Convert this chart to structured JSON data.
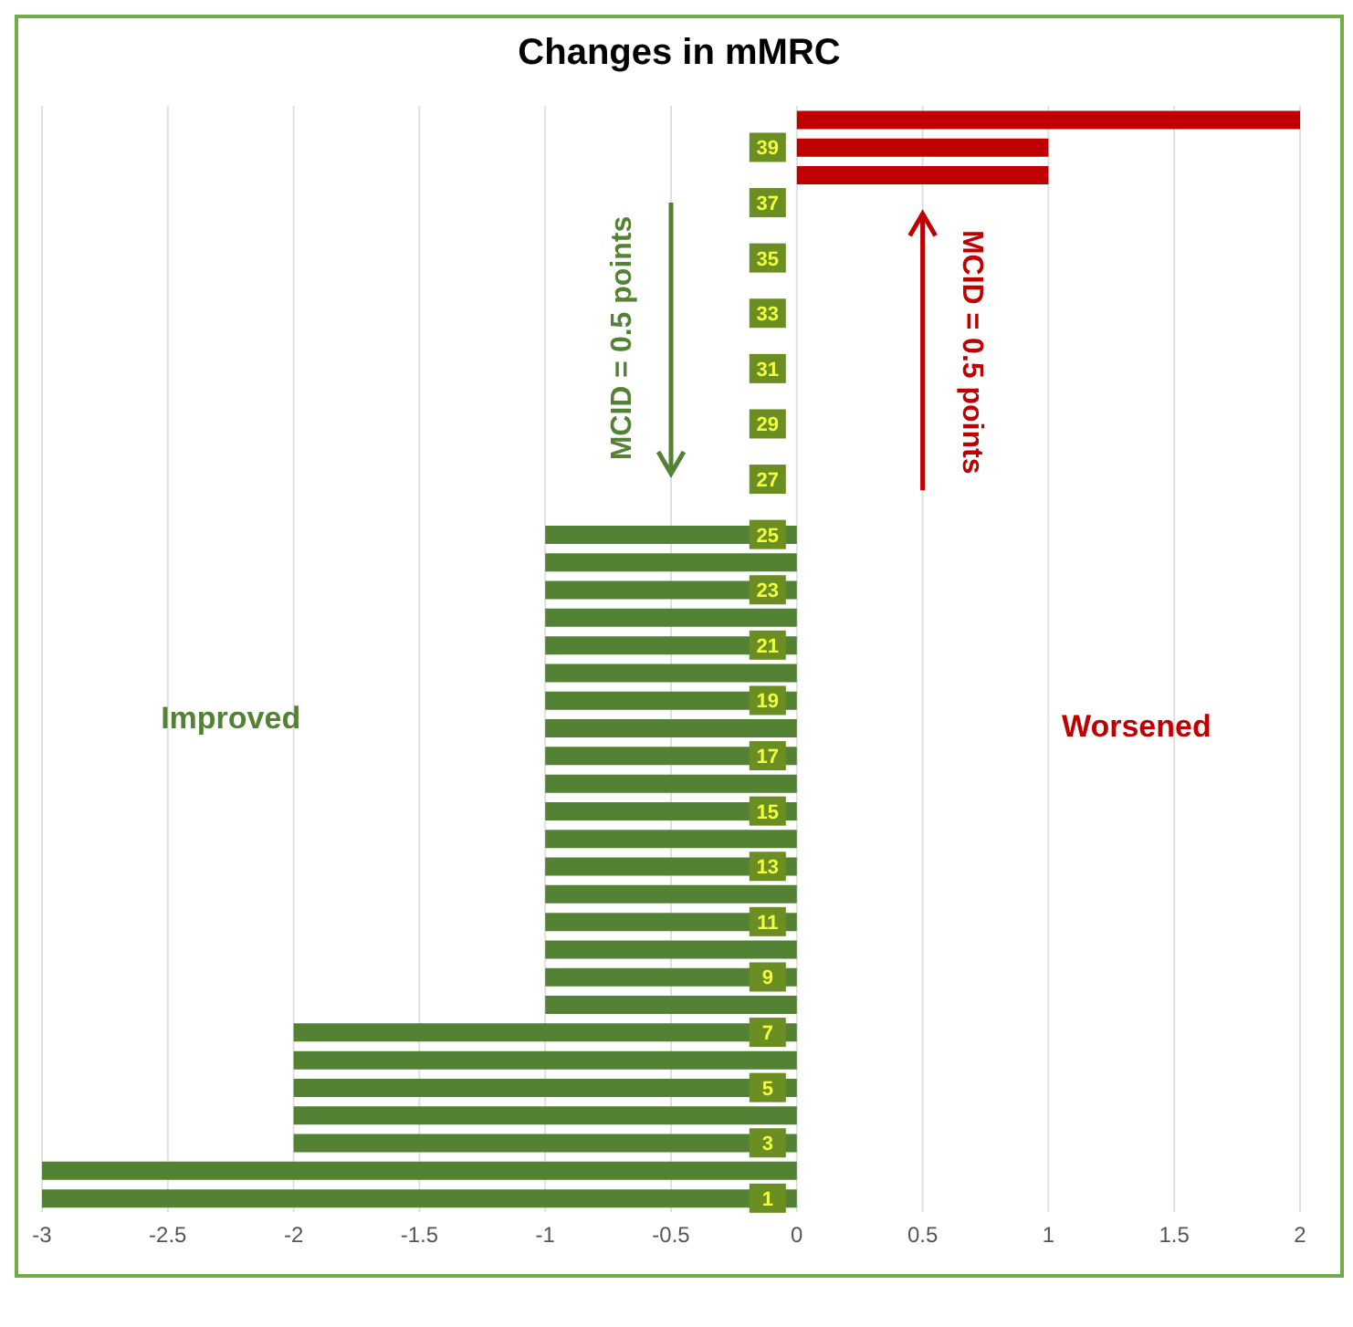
{
  "chart_data": {
    "type": "bar",
    "orientation": "horizontal",
    "title": "Changes in mMRC",
    "categories": [
      null,
      "39",
      null,
      "37",
      null,
      "35",
      null,
      "33",
      null,
      "31",
      null,
      "29",
      null,
      "27",
      null,
      "25",
      null,
      "23",
      null,
      "21",
      null,
      "19",
      null,
      "17",
      null,
      "15",
      null,
      "13",
      null,
      "11",
      null,
      "9",
      null,
      "7",
      null,
      "5",
      null,
      "3",
      null,
      "1"
    ],
    "values": [
      2,
      1,
      1,
      0,
      0,
      0,
      0,
      0,
      0,
      0,
      0,
      0,
      0,
      0,
      0,
      -1,
      -1,
      -1,
      -1,
      -1,
      -1,
      -1,
      -1,
      -1,
      -1,
      -1,
      -1,
      -1,
      -1,
      -1,
      -1,
      -1,
      -1,
      -2,
      -2,
      -2,
      -2,
      -2,
      -3,
      -3
    ],
    "colors": [
      "#c00000",
      "#c00000",
      "#c00000",
      "#548235",
      "#548235",
      "#548235",
      "#548235",
      "#548235",
      "#548235",
      "#548235",
      "#548235",
      "#548235",
      "#548235",
      "#548235",
      "#548235",
      "#548235",
      "#548235",
      "#548235",
      "#548235",
      "#548235",
      "#548235",
      "#548235",
      "#548235",
      "#548235",
      "#548235",
      "#548235",
      "#548235",
      "#548235",
      "#548235",
      "#548235",
      "#548235",
      "#548235",
      "#548235",
      "#548235",
      "#548235",
      "#548235",
      "#548235",
      "#548235",
      "#548235",
      "#548235"
    ],
    "xlim": [
      -3,
      2
    ],
    "xticks": [
      -3,
      -2.5,
      -2,
      -1.5,
      -1,
      -0.5,
      0,
      0.5,
      1,
      1.5,
      2
    ],
    "grid": "x",
    "annotations": [
      "Improved",
      "Worsened",
      "MCID = 0.5 points",
      "MCID = 0.5 points"
    ]
  }
}
